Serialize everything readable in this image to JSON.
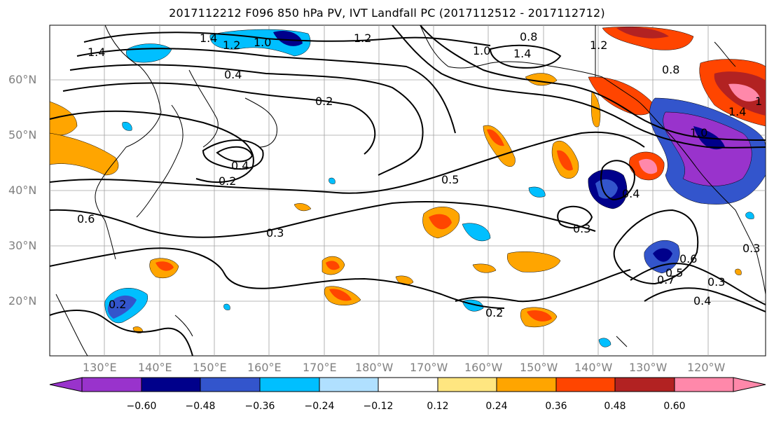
{
  "title": "2017112212 F096 850 hPa PV, IVT Landfall PC (2017112512 - 2017112712)",
  "lat_labels": [
    "60°N",
    "50°N",
    "40°N",
    "30°N",
    "20°N"
  ],
  "lon_labels": [
    "130°E",
    "140°E",
    "150°E",
    "160°E",
    "170°E",
    "180°W",
    "170°W",
    "160°W",
    "150°W",
    "140°W",
    "130°W",
    "120°W"
  ],
  "contour_labels": [
    "1.4",
    "1.2",
    "1.0",
    "1.2",
    "0.8",
    "1.0",
    "1.4",
    "1.2",
    "1.4",
    "0.4",
    "0.2",
    "0.4",
    "0.2",
    "0.5",
    "0.3",
    "0.3",
    "0.2",
    "0.2",
    "0.4",
    "0.3",
    "0.4",
    "0.7",
    "0.6",
    "0.5",
    "1",
    "0.6",
    "0.3",
    "1.0",
    "0.8",
    "1.4"
  ],
  "colorbar": {
    "ticks": [
      "−0.60",
      "−0.48",
      "−0.36",
      "−0.24",
      "−0.12",
      "0.12",
      "0.24",
      "0.36",
      "0.48",
      "0.60"
    ],
    "colors": [
      "#9933cc",
      "#00008b",
      "#3355cc",
      "#00bfff",
      "#b0e0ff",
      "#ffffff",
      "#ffe680",
      "#ffa500",
      "#ff4500",
      "#b22222",
      "#ff88aa",
      "#ffb3d1"
    ]
  },
  "colors": {
    "land": "#000000",
    "grid": "#a0a0a0",
    "contour": "#000000"
  }
}
